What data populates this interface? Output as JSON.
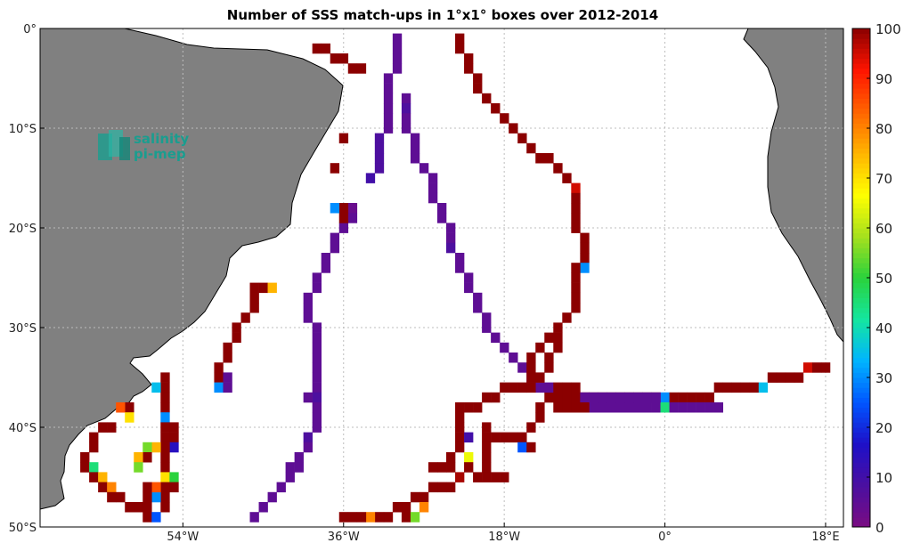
{
  "title": "Number of SSS match-ups in 1°x1° boxes over 2012-2014",
  "logo": {
    "line1": "salinity",
    "line2": "pi-mep",
    "color": "#1a9d8f"
  },
  "colors": {
    "land": "#808080",
    "ocean": "#ffffff",
    "grid": "#bdbdbd"
  },
  "map": {
    "lon_range": [
      -70,
      20
    ],
    "lat_range": [
      -50,
      0
    ],
    "x_ticks": [
      {
        "value": -54,
        "label": "54°W"
      },
      {
        "value": -36,
        "label": "36°W"
      },
      {
        "value": -18,
        "label": "18°W"
      },
      {
        "value": 0,
        "label": "0°"
      },
      {
        "value": 18,
        "label": "18°E"
      }
    ],
    "y_ticks": [
      {
        "value": 0,
        "label": "0°"
      },
      {
        "value": -10,
        "label": "10°S"
      },
      {
        "value": -20,
        "label": "20°S"
      },
      {
        "value": -30,
        "label": "30°S"
      },
      {
        "value": -40,
        "label": "40°S"
      },
      {
        "value": -50,
        "label": "50°S"
      }
    ]
  },
  "colorbar": {
    "min": 0,
    "max": 100,
    "ticks": [
      "0",
      "10",
      "20",
      "30",
      "40",
      "50",
      "60",
      "70",
      "80",
      "90",
      "100"
    ],
    "colormap": [
      "#7a0c82",
      "#4b0fa0",
      "#1e10c8",
      "#0055ff",
      "#00b4ff",
      "#14e6a0",
      "#2ad23c",
      "#a6e01e",
      "#ffff00",
      "#ffb400",
      "#ff6400",
      "#ff1400",
      "#8b0000"
    ]
  },
  "chart_data": {
    "type": "heatmap",
    "title": "Number of SSS match-ups in 1°x1° boxes over 2012-2014",
    "xlabel": "",
    "ylabel": "",
    "x_unit": "longitude (degrees, negative = W)",
    "y_unit": "latitude (degrees, negative = S)",
    "value_range": [
      0,
      100
    ],
    "cells": [
      [
        -30,
        -1,
        5
      ],
      [
        -30,
        -2,
        5
      ],
      [
        -30,
        -3,
        5
      ],
      [
        -30,
        -4,
        5
      ],
      [
        -31,
        -5,
        5
      ],
      [
        -31,
        -6,
        5
      ],
      [
        -31,
        -7,
        5
      ],
      [
        -31,
        -8,
        5
      ],
      [
        -31,
        -9,
        5
      ],
      [
        -31,
        -10,
        5
      ],
      [
        -32,
        -11,
        8
      ],
      [
        -32,
        -12,
        8
      ],
      [
        -32,
        -13,
        8
      ],
      [
        -32,
        -14,
        8
      ],
      [
        -33,
        -15,
        10
      ],
      [
        -29,
        -7,
        5
      ],
      [
        -29,
        -8,
        8
      ],
      [
        -29,
        -9,
        5
      ],
      [
        -29,
        -10,
        5
      ],
      [
        -28,
        -11,
        5
      ],
      [
        -28,
        -12,
        5
      ],
      [
        -28,
        -13,
        5
      ],
      [
        -27,
        -14,
        5
      ],
      [
        -26,
        -15,
        5
      ],
      [
        -26,
        -16,
        5
      ],
      [
        -26,
        -17,
        5
      ],
      [
        -25,
        -18,
        5
      ],
      [
        -25,
        -19,
        5
      ],
      [
        -24,
        -20,
        5
      ],
      [
        -24,
        -21,
        5
      ],
      [
        -24,
        -22,
        8
      ],
      [
        -23,
        -23,
        5
      ],
      [
        -23,
        -24,
        5
      ],
      [
        -22,
        -25,
        5
      ],
      [
        -22,
        -26,
        5
      ],
      [
        -21,
        -27,
        5
      ],
      [
        -21,
        -28,
        5
      ],
      [
        -20,
        -29,
        5
      ],
      [
        -20,
        -30,
        5
      ],
      [
        -19,
        -31,
        5
      ],
      [
        -18,
        -32,
        5
      ],
      [
        -17,
        -33,
        5
      ],
      [
        -16,
        -34,
        5
      ],
      [
        -15,
        -35,
        5
      ],
      [
        -14,
        -36,
        5
      ],
      [
        -35,
        -18,
        3
      ],
      [
        -35,
        -19,
        5
      ],
      [
        -36,
        -20,
        5
      ],
      [
        -37,
        -21,
        5
      ],
      [
        -37,
        -22,
        5
      ],
      [
        -38,
        -23,
        5
      ],
      [
        -38,
        -24,
        5
      ],
      [
        -39,
        -25,
        5
      ],
      [
        -39,
        -26,
        5
      ],
      [
        -40,
        -27,
        5
      ],
      [
        -40,
        -28,
        5
      ],
      [
        -40,
        -29,
        5
      ],
      [
        -39,
        -30,
        5
      ],
      [
        -39,
        -31,
        5
      ],
      [
        -39,
        -32,
        5
      ],
      [
        -39,
        -33,
        5
      ],
      [
        -39,
        -34,
        5
      ],
      [
        -39,
        -35,
        5
      ],
      [
        -39,
        -36,
        5
      ],
      [
        -39,
        -37,
        8
      ],
      [
        -40,
        -37,
        5
      ],
      [
        -39,
        -38,
        5
      ],
      [
        -39,
        -39,
        5
      ],
      [
        -39,
        -40,
        5
      ],
      [
        -40,
        -41,
        8
      ],
      [
        -40,
        -42,
        5
      ],
      [
        -41,
        -43,
        5
      ],
      [
        -41,
        -44,
        5
      ],
      [
        -42,
        -44,
        5
      ],
      [
        -42,
        -45,
        5
      ],
      [
        -43,
        -46,
        5
      ],
      [
        -44,
        -47,
        5
      ],
      [
        -45,
        -48,
        5
      ],
      [
        -46,
        -49,
        5
      ],
      [
        -23,
        -1,
        100
      ],
      [
        -23,
        -2,
        100
      ],
      [
        -22,
        -3,
        100
      ],
      [
        -22,
        -4,
        100
      ],
      [
        -21,
        -5,
        100
      ],
      [
        -21,
        -6,
        100
      ],
      [
        -20,
        -7,
        100
      ],
      [
        -19,
        -8,
        100
      ],
      [
        -18,
        -9,
        100
      ],
      [
        -17,
        -10,
        100
      ],
      [
        -16,
        -11,
        100
      ],
      [
        -15,
        -12,
        100
      ],
      [
        -14,
        -13,
        100
      ],
      [
        -13,
        -13,
        100
      ],
      [
        -12,
        -14,
        100
      ],
      [
        -11,
        -15,
        100
      ],
      [
        -10,
        -16,
        95
      ],
      [
        -10,
        -17,
        100
      ],
      [
        -10,
        -18,
        100
      ],
      [
        -10,
        -19,
        100
      ],
      [
        -10,
        -20,
        100
      ],
      [
        -9,
        -21,
        100
      ],
      [
        -9,
        -22,
        100
      ],
      [
        -9,
        -23,
        100
      ],
      [
        -9,
        -24,
        30
      ],
      [
        -10,
        -24,
        100
      ],
      [
        -10,
        -25,
        100
      ],
      [
        -10,
        -26,
        100
      ],
      [
        -10,
        -27,
        100
      ],
      [
        -10,
        -28,
        100
      ],
      [
        -11,
        -29,
        100
      ],
      [
        -12,
        -30,
        100
      ],
      [
        -13,
        -31,
        100
      ],
      [
        -14,
        -32,
        100
      ],
      [
        -15,
        -33,
        100
      ],
      [
        -15,
        -34,
        100
      ],
      [
        -15,
        -35,
        100
      ],
      [
        -15,
        -36,
        100
      ],
      [
        -16,
        -36,
        100
      ],
      [
        -17,
        -36,
        100
      ],
      [
        -18,
        -36,
        100
      ],
      [
        -19,
        -37,
        100
      ],
      [
        -20,
        -37,
        100
      ],
      [
        -21,
        -38,
        100
      ],
      [
        -22,
        -38,
        100
      ],
      [
        -23,
        -38,
        100
      ],
      [
        -23,
        -39,
        100
      ],
      [
        -23,
        -40,
        100
      ],
      [
        -23,
        -41,
        100
      ],
      [
        -23,
        -42,
        100
      ],
      [
        -22,
        -41,
        10
      ],
      [
        -24,
        -43,
        100
      ],
      [
        -25,
        -44,
        100
      ],
      [
        -26,
        -44,
        100
      ],
      [
        -24,
        -44,
        100
      ],
      [
        -22,
        -43,
        65
      ],
      [
        -22,
        -44,
        100
      ],
      [
        -21,
        -45,
        100
      ],
      [
        -20,
        -45,
        100
      ],
      [
        -19,
        -45,
        100
      ],
      [
        -18,
        -45,
        100
      ],
      [
        -23,
        -45,
        98
      ],
      [
        -24,
        -46,
        100
      ],
      [
        -25,
        -46,
        100
      ],
      [
        -26,
        -46,
        100
      ],
      [
        -27,
        -47,
        100
      ],
      [
        -28,
        -47,
        100
      ],
      [
        -29,
        -48,
        100
      ],
      [
        -30,
        -48,
        100
      ],
      [
        -31,
        -49,
        100
      ],
      [
        -32,
        -49,
        100
      ],
      [
        -33,
        -49,
        80
      ],
      [
        -34,
        -49,
        100
      ],
      [
        -35,
        -49,
        100
      ],
      [
        -36,
        -49,
        100
      ],
      [
        -29,
        -49,
        100
      ],
      [
        -28,
        -49,
        55
      ],
      [
        -27,
        -48,
        80
      ],
      [
        -20,
        -40,
        100
      ],
      [
        -20,
        -41,
        100
      ],
      [
        -20,
        -42,
        100
      ],
      [
        -20,
        -43,
        100
      ],
      [
        -20,
        -44,
        100
      ],
      [
        -19,
        -41,
        100
      ],
      [
        -18,
        -41,
        100
      ],
      [
        -17,
        -41,
        100
      ],
      [
        -16,
        -41,
        100
      ],
      [
        -16,
        -42,
        25
      ],
      [
        -15,
        -42,
        100
      ],
      [
        -15,
        -40,
        100
      ],
      [
        -14,
        -39,
        100
      ],
      [
        -14,
        -38,
        100
      ],
      [
        -13,
        -37,
        100
      ],
      [
        -12,
        -37,
        100
      ],
      [
        -11,
        -37,
        100
      ],
      [
        -10,
        -37,
        100
      ],
      [
        -9,
        -37,
        100
      ],
      [
        -8,
        -37,
        100
      ],
      [
        -7,
        -37,
        100
      ],
      [
        -6,
        -37,
        100
      ],
      [
        -5,
        -37,
        100
      ],
      [
        -4,
        -37,
        100
      ],
      [
        -3,
        -37,
        100
      ],
      [
        -2,
        -37,
        100
      ],
      [
        -1,
        -37,
        100
      ],
      [
        0,
        -37,
        30
      ],
      [
        1,
        -37,
        100
      ],
      [
        2,
        -37,
        100
      ],
      [
        3,
        -37,
        100
      ],
      [
        4,
        -37,
        100
      ],
      [
        5,
        -37,
        100
      ],
      [
        6,
        -36,
        100
      ],
      [
        7,
        -36,
        100
      ],
      [
        8,
        -36,
        100
      ],
      [
        9,
        -36,
        100
      ],
      [
        10,
        -36,
        100
      ],
      [
        11,
        -36,
        35
      ],
      [
        12,
        -35,
        100
      ],
      [
        13,
        -35,
        100
      ],
      [
        14,
        -35,
        100
      ],
      [
        15,
        -35,
        100
      ],
      [
        16,
        -34,
        95
      ],
      [
        17,
        -34,
        100
      ],
      [
        18,
        -34,
        100
      ],
      [
        -14,
        -35,
        100
      ],
      [
        -13,
        -34,
        100
      ],
      [
        -13,
        -33,
        100
      ],
      [
        -12,
        -32,
        100
      ],
      [
        -12,
        -31,
        100
      ],
      [
        -13,
        -36,
        5
      ],
      [
        -12,
        -36,
        100
      ],
      [
        -11,
        -36,
        100
      ],
      [
        -10,
        -36,
        100
      ],
      [
        -9,
        -37,
        5
      ],
      [
        -8,
        -38,
        5
      ],
      [
        -7,
        -38,
        5
      ],
      [
        -6,
        -38,
        5
      ],
      [
        -5,
        -38,
        5
      ],
      [
        -4,
        -38,
        5
      ],
      [
        -3,
        -38,
        5
      ],
      [
        -2,
        -38,
        5
      ],
      [
        -1,
        -38,
        5
      ],
      [
        0,
        -38,
        45
      ],
      [
        1,
        -38,
        5
      ],
      [
        2,
        -38,
        5
      ],
      [
        3,
        -38,
        5
      ],
      [
        4,
        -38,
        5
      ],
      [
        5,
        -38,
        5
      ],
      [
        6,
        -38,
        5
      ],
      [
        -12,
        -38,
        100
      ],
      [
        -11,
        -38,
        100
      ],
      [
        -10,
        -38,
        100
      ],
      [
        -9,
        -38,
        100
      ],
      [
        -8,
        -37,
        5
      ],
      [
        -7,
        -37,
        5
      ],
      [
        -6,
        -37,
        5
      ],
      [
        -5,
        -37,
        5
      ],
      [
        -4,
        -37,
        5
      ],
      [
        -3,
        -37,
        5
      ],
      [
        -2,
        -37,
        5
      ],
      [
        -1,
        -37,
        5
      ],
      [
        -39,
        -2,
        100
      ],
      [
        -38,
        -2,
        100
      ],
      [
        -37,
        -3,
        100
      ],
      [
        -36,
        -3,
        100
      ],
      [
        -35,
        -4,
        100
      ],
      [
        -34,
        -4,
        100
      ],
      [
        -36,
        -11,
        100
      ],
      [
        -37,
        -14,
        100
      ],
      [
        -36,
        -19,
        100
      ],
      [
        -36,
        -18,
        100
      ],
      [
        -37,
        -18,
        30
      ],
      [
        -45,
        -26,
        100
      ],
      [
        -46,
        -26,
        100
      ],
      [
        -44,
        -26,
        75
      ],
      [
        -46,
        -27,
        100
      ],
      [
        -46,
        -28,
        100
      ],
      [
        -47,
        -29,
        100
      ],
      [
        -48,
        -30,
        100
      ],
      [
        -48,
        -31,
        100
      ],
      [
        -49,
        -32,
        100
      ],
      [
        -49,
        -33,
        100
      ],
      [
        -50,
        -34,
        100
      ],
      [
        -50,
        -35,
        100
      ],
      [
        -50,
        -36,
        30
      ],
      [
        -49,
        -36,
        5
      ],
      [
        -49,
        -35,
        5
      ],
      [
        -56,
        -35,
        100
      ],
      [
        -56,
        -36,
        100
      ],
      [
        -57,
        -36,
        35
      ],
      [
        -56,
        -37,
        100
      ],
      [
        -56,
        -38,
        100
      ],
      [
        -56,
        -39,
        30
      ],
      [
        -56,
        -40,
        100
      ],
      [
        -56,
        -41,
        100
      ],
      [
        -55,
        -40,
        100
      ],
      [
        -55,
        -41,
        100
      ],
      [
        -55,
        -42,
        15
      ],
      [
        -56,
        -42,
        100
      ],
      [
        -56,
        -43,
        100
      ],
      [
        -56,
        -44,
        100
      ],
      [
        -56,
        -45,
        70
      ],
      [
        -55,
        -45,
        50
      ],
      [
        -56,
        -46,
        100
      ],
      [
        -55,
        -46,
        100
      ],
      [
        -56,
        -47,
        100
      ],
      [
        -56,
        -48,
        100
      ],
      [
        -57,
        -47,
        30
      ],
      [
        -58,
        -47,
        100
      ],
      [
        -58,
        -48,
        100
      ],
      [
        -58,
        -49,
        100
      ],
      [
        -57,
        -49,
        25
      ],
      [
        -57,
        -42,
        75
      ],
      [
        -58,
        -42,
        55
      ],
      [
        -58,
        -43,
        100
      ],
      [
        -59,
        -43,
        75
      ],
      [
        -59,
        -44,
        55
      ],
      [
        -60,
        -38,
        100
      ],
      [
        -61,
        -38,
        85
      ],
      [
        -60,
        -39,
        70
      ],
      [
        -62,
        -40,
        100
      ],
      [
        -63,
        -40,
        100
      ],
      [
        -64,
        -41,
        100
      ],
      [
        -64,
        -42,
        100
      ],
      [
        -65,
        -43,
        100
      ],
      [
        -65,
        -44,
        100
      ],
      [
        -64,
        -44,
        45
      ],
      [
        -64,
        -45,
        100
      ],
      [
        -63,
        -45,
        75
      ],
      [
        -63,
        -46,
        100
      ],
      [
        -62,
        -46,
        80
      ],
      [
        -62,
        -47,
        100
      ],
      [
        -61,
        -47,
        100
      ],
      [
        -60,
        -48,
        100
      ],
      [
        -59,
        -48,
        100
      ],
      [
        -57,
        -46,
        85
      ],
      [
        -58,
        -46,
        100
      ]
    ]
  }
}
